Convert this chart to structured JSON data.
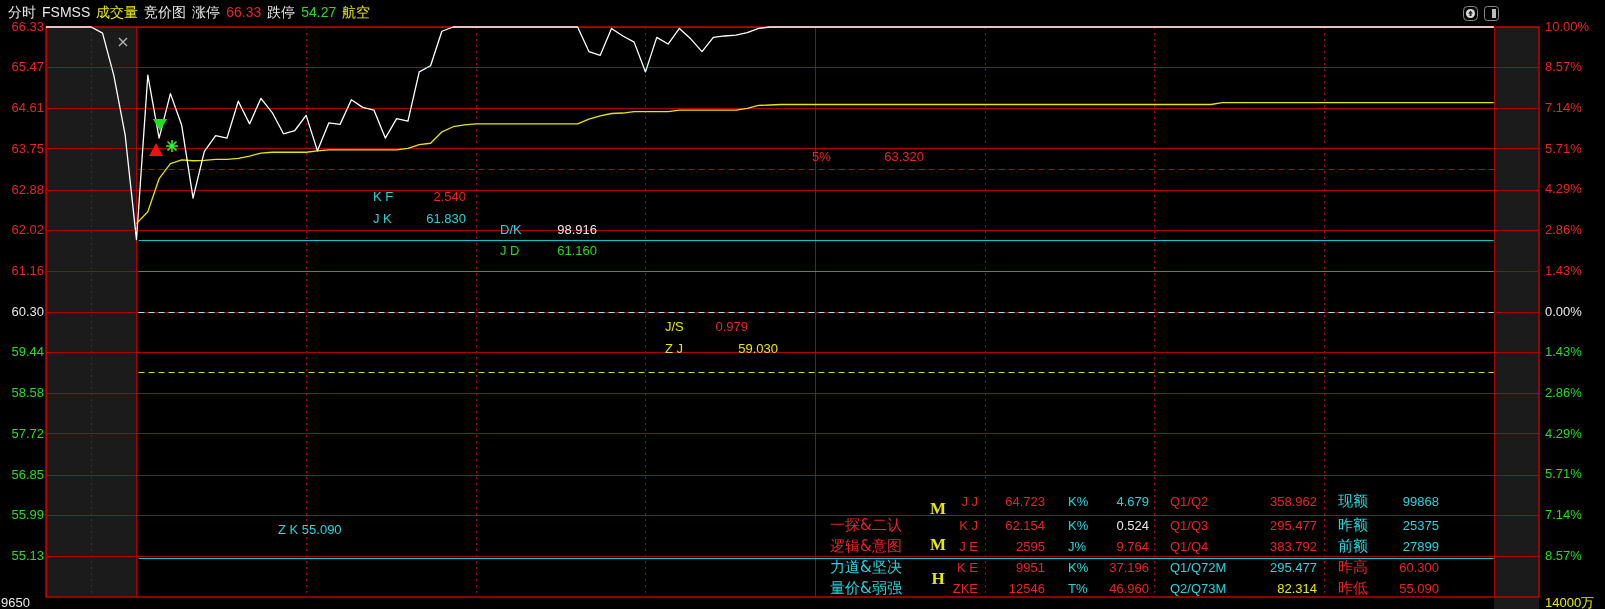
{
  "chart_data": {
    "type": "line",
    "title": "分时 FSMSS 成交量 竞价图 涨停 66.33 跌停 54.27 航空",
    "categories": [
      null,
      null,
      null,
      null,
      null,
      null,
      null,
      null,
      null,
      null,
      null,
      null,
      null,
      null,
      null,
      null,
      null,
      null,
      null,
      null,
      null,
      null,
      null,
      null,
      null,
      null,
      null,
      null,
      null,
      null,
      null,
      null,
      null,
      null,
      null,
      null,
      null,
      null,
      null,
      null,
      null,
      null,
      null,
      null,
      null,
      null,
      null,
      null,
      null,
      null,
      null,
      null,
      null,
      null,
      null,
      null,
      null,
      null,
      null,
      null,
      null,
      null,
      null,
      null,
      null,
      null,
      null,
      null,
      null,
      null,
      null,
      null,
      null,
      null,
      null,
      null,
      null,
      null,
      null,
      null,
      null,
      null,
      null,
      null,
      null,
      null,
      null,
      null,
      null,
      null,
      null,
      null,
      null,
      null,
      null,
      null,
      null,
      null,
      null,
      null,
      null,
      null,
      null,
      null,
      null,
      null,
      null,
      null,
      null,
      null,
      null,
      null,
      null,
      null,
      null,
      null,
      null,
      null,
      null,
      null,
      null,
      null,
      null,
      null,
      null,
      null,
      null,
      null,
      null,
      null,
      null,
      null,
      null
    ],
    "series": [
      {
        "color": "#ffffff",
        "values": [
          66.33,
          66.33,
          66.33,
          66.33,
          66.33,
          66.2,
          65.3,
          64.04,
          61.83,
          65.31,
          63.98,
          64.92,
          64.25,
          62.71,
          63.7,
          64.03,
          63.98,
          64.76,
          64.28,
          64.82,
          64.52,
          64.07,
          64.14,
          64.46,
          63.71,
          64.3,
          64.27,
          64.79,
          64.63,
          64.57,
          63.98,
          64.39,
          64.34,
          65.38,
          65.51,
          66.24,
          66.33,
          66.33,
          66.33,
          66.33,
          66.33,
          66.33,
          66.33,
          66.33,
          66.33,
          66.33,
          66.33,
          66.33,
          65.81,
          65.73,
          66.3,
          66.14,
          66.01,
          65.38,
          66.11,
          65.97,
          66.3,
          66.08,
          65.81,
          66.11,
          66.14,
          66.16,
          66.21,
          66.3,
          66.33,
          66.33,
          66.33,
          66.33,
          66.33,
          66.33,
          66.33,
          66.33,
          66.33,
          66.33,
          66.33,
          66.33,
          66.33,
          66.33,
          66.33,
          66.33,
          66.33,
          66.33,
          66.33,
          66.33,
          66.33,
          66.33,
          66.33,
          66.33,
          66.33,
          66.33,
          66.33,
          66.33,
          66.33,
          66.33,
          66.33,
          66.33,
          66.33,
          66.33,
          66.33,
          66.33,
          66.33,
          66.33,
          66.33,
          66.33,
          66.33,
          66.33,
          66.33,
          66.33,
          66.33,
          66.33,
          66.33,
          66.33,
          66.33,
          66.33,
          66.33,
          66.33,
          66.33,
          66.33,
          66.33,
          66.33,
          66.33,
          66.33,
          66.33,
          66.33,
          66.33,
          66.33,
          66.33,
          66.33,
          66.33,
          null,
          null,
          null,
          null
        ]
      },
      {
        "color": "#e6e600",
        "values": [
          null,
          null,
          null,
          null,
          null,
          null,
          null,
          null,
          62.17,
          62.42,
          63.12,
          63.44,
          63.52,
          63.5,
          63.51,
          63.53,
          63.53,
          63.55,
          63.6,
          63.66,
          63.68,
          63.68,
          63.68,
          63.68,
          63.71,
          63.73,
          63.73,
          63.73,
          63.73,
          63.73,
          63.73,
          63.73,
          63.76,
          63.84,
          63.87,
          64.11,
          64.22,
          64.26,
          64.28,
          64.28,
          64.28,
          64.28,
          64.28,
          64.28,
          64.28,
          64.28,
          64.28,
          64.28,
          64.38,
          64.45,
          64.5,
          64.51,
          64.54,
          64.54,
          64.54,
          64.54,
          64.57,
          64.57,
          64.57,
          64.57,
          64.57,
          64.57,
          64.61,
          64.67,
          64.68,
          64.69,
          64.69,
          64.69,
          64.69,
          64.69,
          64.69,
          64.69,
          64.69,
          64.69,
          64.69,
          64.69,
          64.69,
          64.69,
          64.69,
          64.69,
          64.69,
          64.69,
          64.69,
          64.69,
          64.69,
          64.69,
          64.69,
          64.69,
          64.69,
          64.69,
          64.69,
          64.69,
          64.69,
          64.69,
          64.69,
          64.69,
          64.69,
          64.69,
          64.69,
          64.69,
          64.69,
          64.69,
          64.69,
          64.69,
          64.73,
          64.73,
          64.73,
          64.73,
          64.73,
          64.73,
          64.73,
          64.73,
          64.73,
          64.73,
          64.73,
          64.73,
          64.73,
          64.73,
          64.73,
          64.73,
          64.73,
          64.73,
          64.73,
          64.73,
          64.73,
          64.73,
          64.73,
          64.73,
          64.73,
          null,
          null,
          null,
          null
        ]
      }
    ],
    "ylim": [
      54.27,
      66.33
    ],
    "yticks": [
      66.33,
      65.47,
      64.61,
      63.75,
      62.88,
      62.02,
      61.16,
      {
        "value": 60.3,
        "label": "60.30"
      },
      59.44,
      58.58,
      57.72,
      56.85,
      55.99,
      55.13
    ],
    "y2lim": [
      -10,
      10
    ],
    "y2ticks": [
      {
        "value": 10,
        "label": "10.00%"
      },
      {
        "value": 8.57,
        "label": "8.57%"
      },
      {
        "value": 7.14,
        "label": "7.14%"
      },
      {
        "value": 5.71,
        "label": "5.71%"
      },
      {
        "value": 4.29,
        "label": "4.29%"
      },
      {
        "value": 2.86,
        "label": "2.86%"
      },
      {
        "value": 1.43,
        "label": "1.43%"
      },
      {
        "value": 0,
        "label": "0.00%"
      },
      {
        "value": -1.43,
        "label": "1.43%"
      },
      {
        "value": -2.86,
        "label": "2.86%"
      },
      {
        "value": -4.29,
        "label": "4.29%"
      },
      {
        "value": -5.71,
        "label": "5.71%"
      },
      {
        "value": -7.14,
        "label": "7.14%"
      },
      {
        "value": -8.57,
        "label": "8.57%"
      }
    ],
    "ref_lines": [
      {
        "axis": "y",
        "value": 63.32,
        "color": "#d00000",
        "line_style": "dashed"
      },
      {
        "axis": "y",
        "value": 61.83,
        "color": "#00c8d2",
        "line_style": "solid"
      },
      {
        "axis": "y",
        "value": 61.16,
        "color": "#00c000",
        "line_style": "solid"
      },
      {
        "axis": "y",
        "value": 60.3,
        "color": "#9be6ff",
        "line_style": "dashed"
      },
      {
        "axis": "y",
        "value": 59.03,
        "color": "#d8d800",
        "line_style": "dashed"
      },
      {
        "axis": "y",
        "value": 55.09,
        "color": "#00c8d2",
        "line_style": "solid"
      }
    ],
    "annotations": [
      "K F",
      "2.540",
      "J K",
      "61.830",
      "D/K",
      "98.916",
      "J D",
      "61.160",
      "5%",
      "63.320",
      "J/S",
      "0.979",
      "Z J",
      "59.030",
      "Z K 55.090",
      "J J",
      "64.723",
      "K%",
      "4.679",
      "Q1/Q2",
      "358.962",
      "现额",
      "99868",
      "一探&二认",
      "K J",
      "62.154",
      "K%",
      "0.524",
      "Q1/Q3",
      "295.477",
      "昨额",
      "25375",
      "逻辑&意图",
      "J E",
      "2595",
      "J%",
      "9.764",
      "Q1/Q4",
      "383.792",
      "前额",
      "27899",
      "力道&坚决",
      "K E",
      "9951",
      "K%",
      "37.196",
      "Q1/Q72M",
      "295.477",
      "昨高",
      "60.300",
      "量价&弱强",
      "ZKE",
      "12546",
      "T%",
      "46.960",
      "Q2/Q73M",
      "82.314",
      "昨低",
      "55.090",
      "M",
      "M",
      "H",
      "9650",
      "14000万"
    ],
    "grid": true,
    "legend": false,
    "marker": "none",
    "tick_labels": "y"
  }
}
